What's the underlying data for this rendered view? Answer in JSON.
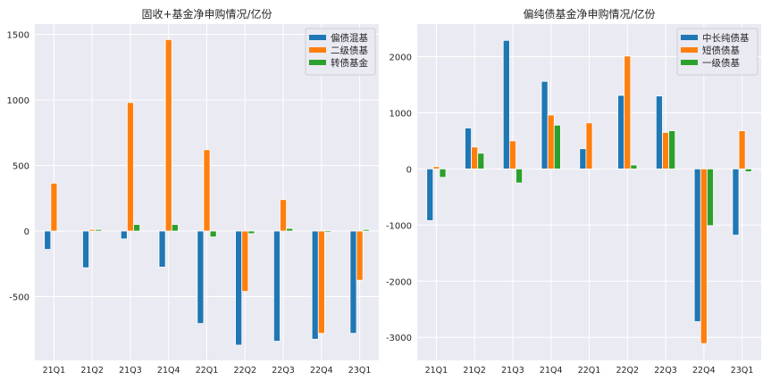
{
  "chart_data": [
    {
      "type": "bar",
      "title": "固收+基金净申购情况/亿份",
      "categories": [
        "21Q1",
        "21Q2",
        "21Q3",
        "21Q4",
        "22Q1",
        "22Q2",
        "22Q3",
        "22Q4",
        "23Q1"
      ],
      "series": [
        {
          "name": "偏债混基",
          "color": "#1f77b4",
          "values": [
            -140,
            -280,
            -60,
            -275,
            -705,
            -870,
            -840,
            -825,
            -780
          ]
        },
        {
          "name": "二级债基",
          "color": "#ff7f0e",
          "values": [
            365,
            12,
            980,
            1460,
            620,
            -460,
            240,
            -780,
            -375
          ]
        },
        {
          "name": "转债基金",
          "color": "#2ca02c",
          "values": [
            -5,
            12,
            50,
            50,
            -45,
            -20,
            20,
            -10,
            12
          ]
        }
      ],
      "yticks": [
        -500,
        0,
        500,
        1000,
        1500
      ],
      "ylim": [
        -986,
        1578
      ],
      "grid": true,
      "legend": "top-right"
    },
    {
      "type": "bar",
      "title": "偏纯债基金净申购情况/亿份",
      "categories": [
        "21Q1",
        "21Q2",
        "21Q3",
        "21Q4",
        "22Q1",
        "22Q2",
        "22Q3",
        "22Q4",
        "23Q1"
      ],
      "series": [
        {
          "name": "中长纯债基",
          "color": "#1f77b4",
          "values": [
            -920,
            730,
            2290,
            1560,
            360,
            1310,
            1300,
            -2720,
            -1180
          ]
        },
        {
          "name": "短债债基",
          "color": "#ff7f0e",
          "values": [
            40,
            390,
            500,
            960,
            820,
            2010,
            650,
            -3110,
            680
          ]
        },
        {
          "name": "一级债基",
          "color": "#2ca02c",
          "values": [
            -150,
            280,
            -250,
            780,
            0,
            70,
            680,
            -1010,
            -50
          ]
        }
      ],
      "yticks": [
        -3000,
        -2000,
        -1000,
        0,
        1000,
        2000
      ],
      "ylim": [
        -3410,
        2580
      ],
      "grid": true,
      "legend": "top-right"
    }
  ]
}
